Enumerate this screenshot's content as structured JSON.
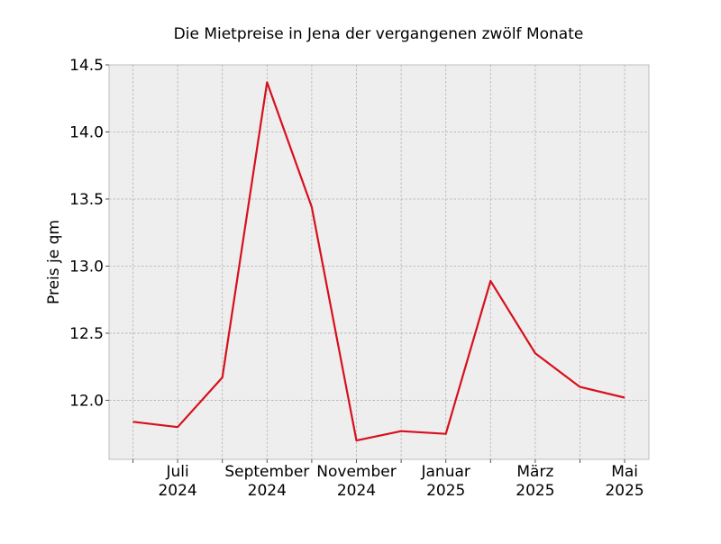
{
  "chart_data": {
    "type": "line",
    "title": "Die Mietpreise in Jena der vergangenen zwölf Monate",
    "xlabel": "",
    "ylabel": "Preis je qm",
    "x": [
      "2024-06",
      "2024-07",
      "2024-08",
      "2024-09",
      "2024-10",
      "2024-11",
      "2024-12",
      "2025-01",
      "2025-02",
      "2025-03",
      "2025-04",
      "2025-05"
    ],
    "series": [
      {
        "values": [
          11.84,
          11.8,
          12.17,
          14.37,
          13.44,
          11.7,
          11.77,
          11.75,
          12.89,
          12.35,
          12.1,
          12.02
        ],
        "color": "#d7101d"
      }
    ],
    "ylim": [
      11.56,
      14.5
    ],
    "yticks": [
      12.0,
      12.5,
      13.0,
      13.5,
      14.0,
      14.5
    ],
    "ytick_labels": [
      "12.0",
      "12.5",
      "13.0",
      "13.5",
      "14.0",
      "14.5"
    ],
    "xticks": [
      {
        "month": "Juli",
        "year": "2024"
      },
      {
        "month": "September",
        "year": "2024"
      },
      {
        "month": "November",
        "year": "2024"
      },
      {
        "month": "Januar",
        "year": "2025"
      },
      {
        "month": "März",
        "year": "2025"
      },
      {
        "month": "Mai",
        "year": "2025"
      }
    ],
    "grid": true,
    "colors": {
      "background": "#eeeeee",
      "grid": "#b0b0b0",
      "line": "#d7101d"
    }
  }
}
